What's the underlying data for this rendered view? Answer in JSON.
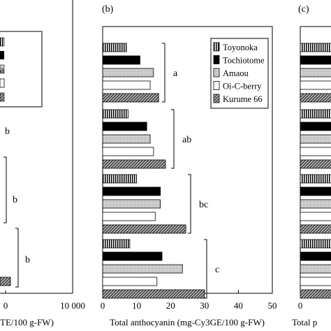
{
  "panels": {
    "left": {
      "letters": [
        "b",
        "b",
        "b"
      ],
      "xticks": [
        "0",
        "10 000"
      ],
      "xlabel": "TE/100 g-FW)"
    },
    "middle": {
      "panel_label": "(b)"
    },
    "right": {
      "panel_label": "(c)",
      "xticks": [
        "0"
      ],
      "xlabel": "Total p"
    }
  },
  "colors": {
    "Toyonoka": "#b8b8b8",
    "Tochiotome": "#000000",
    "Amaou": "#cfcfcf",
    "Oi-C-berry": "#ffffff",
    "Kurume 66": "#7a7a7a"
  },
  "chart_data": {
    "type": "bar",
    "orientation": "horizontal",
    "title": "(b)",
    "xlabel": "Total anthocyanin (mg-Cy3GE/100 g-FW)",
    "ylabel": "",
    "xlim": [
      0,
      50
    ],
    "xticks": [
      "0",
      "10",
      "20",
      "30",
      "40",
      "50"
    ],
    "legend_position": "top-right",
    "group_letters": [
      "a",
      "ab",
      "bc",
      "c"
    ],
    "series": [
      {
        "name": "Toyonoka",
        "values": [
          7,
          7.5,
          10,
          8
        ]
      },
      {
        "name": "Tochiotome",
        "values": [
          11,
          13,
          17,
          17.5
        ]
      },
      {
        "name": "Amaou",
        "values": [
          15,
          14,
          17,
          23.5
        ]
      },
      {
        "name": "Oi-C-berry",
        "values": [
          14,
          15,
          15.5,
          16
        ]
      },
      {
        "name": "Kurume 66",
        "values": [
          16.5,
          18.5,
          24.5,
          30
        ]
      }
    ]
  }
}
